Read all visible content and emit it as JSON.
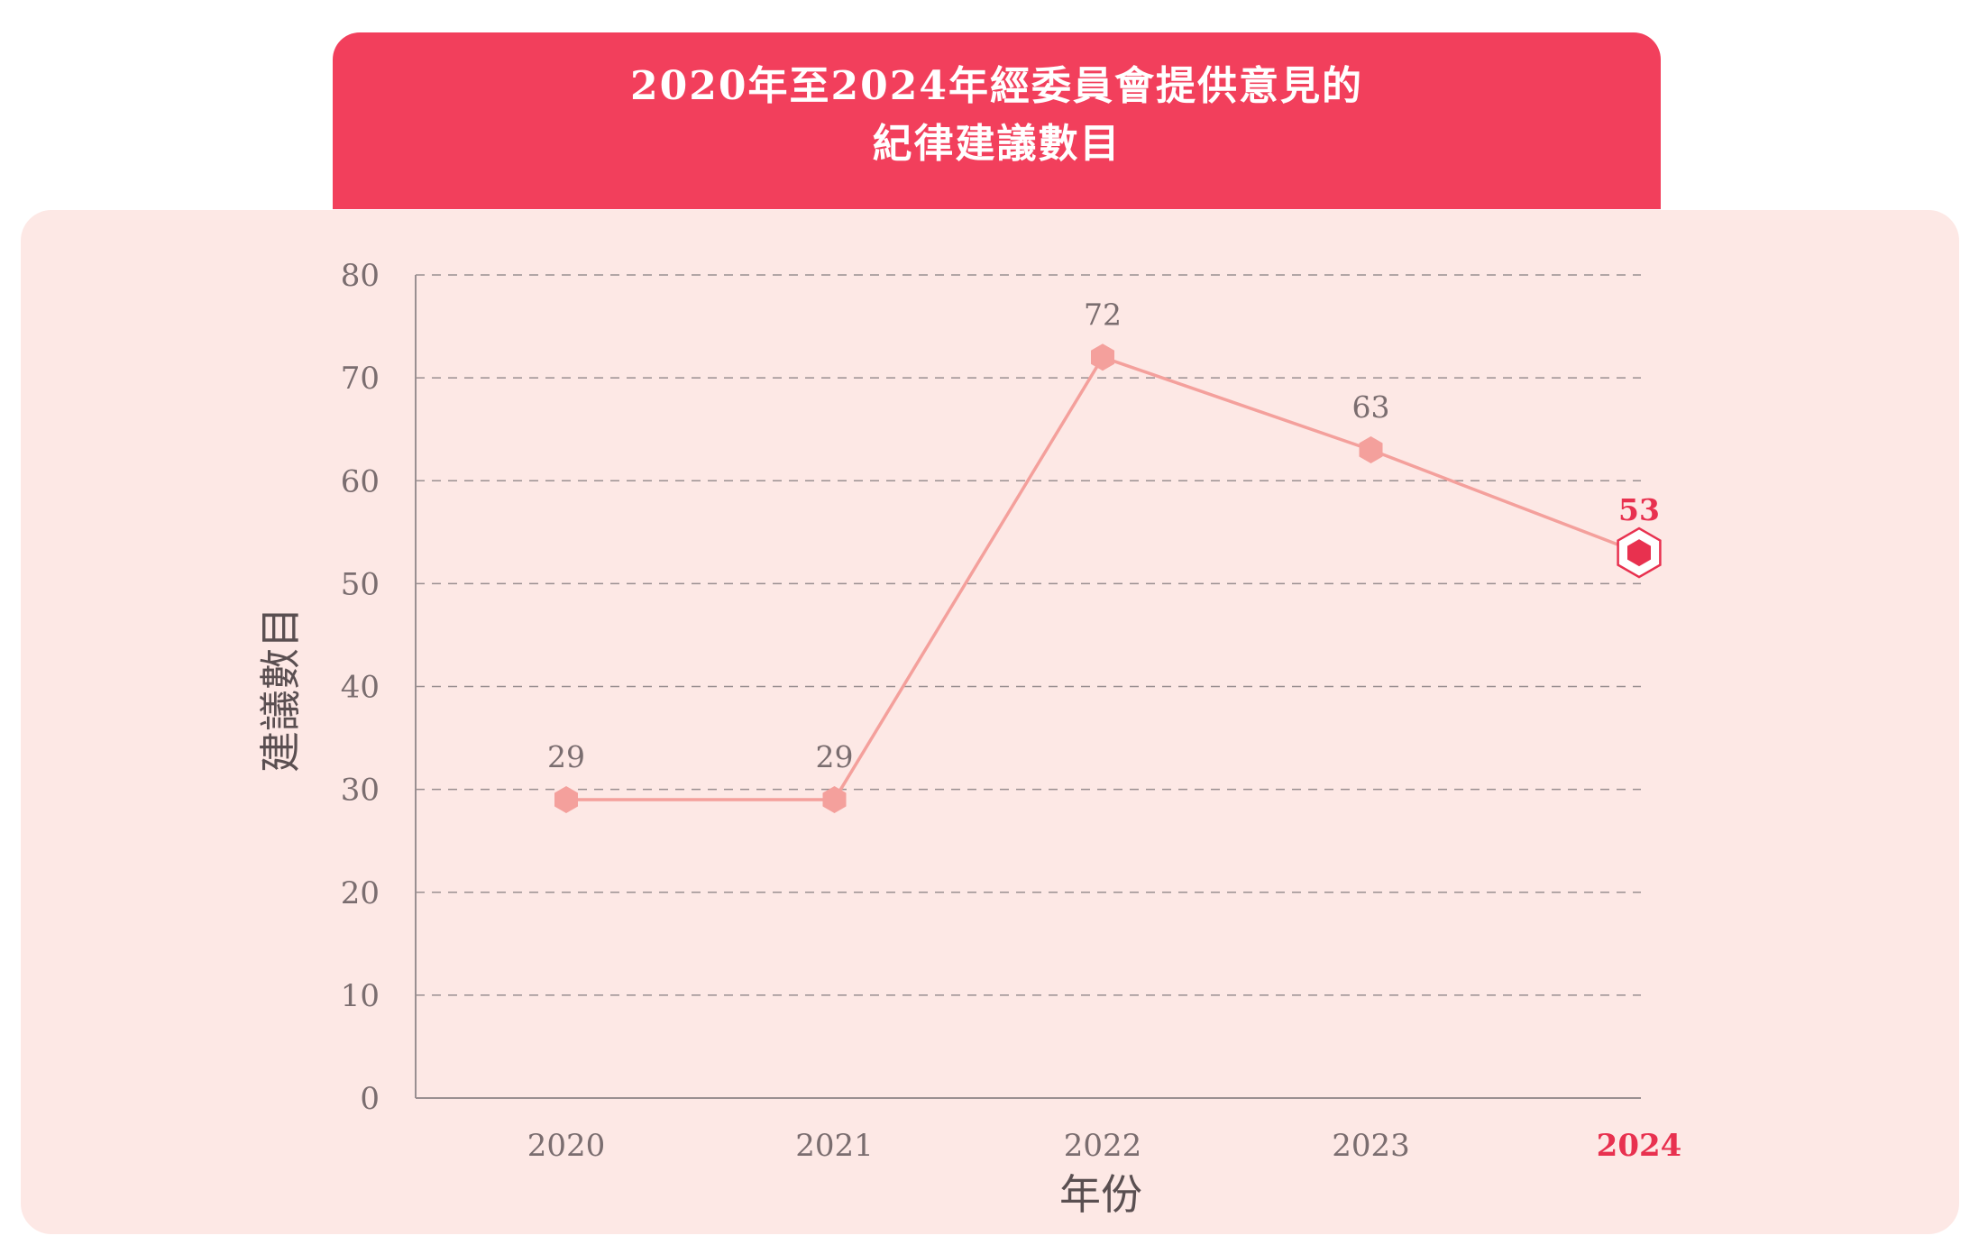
{
  "title": {
    "line1": "2020年至2024年經委員會提供意見的",
    "line2": "紀律建議數目"
  },
  "colors": {
    "banner": "#f23f5c",
    "panel": "#fde8e5",
    "line": "#f4a09c",
    "marker": "#f4a09c",
    "highlight": "#e8314f",
    "grid": "#9a8f91",
    "axis": "#9a8f91",
    "text": "#7a6d6f"
  },
  "chart_data": {
    "type": "line",
    "x": [
      "2020",
      "2021",
      "2022",
      "2023",
      "2024"
    ],
    "values": [
      29,
      29,
      72,
      63,
      53
    ],
    "data_labels": [
      "29",
      "29",
      "72",
      "63",
      "53"
    ],
    "highlight_index": 4,
    "xlabel": "年份",
    "ylabel": "建議數目",
    "ylim": [
      0,
      80
    ],
    "yticks": [
      "0",
      "10",
      "20",
      "30",
      "40",
      "50",
      "60",
      "70",
      "80"
    ],
    "grid": true,
    "marker": "hexagon"
  }
}
